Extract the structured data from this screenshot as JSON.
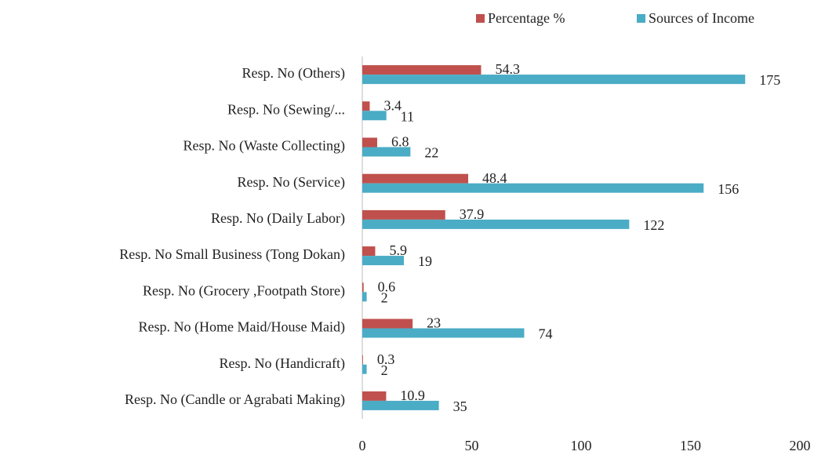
{
  "chart_data": {
    "type": "bar",
    "orientation": "horizontal",
    "categories": [
      "Resp. No (Others)",
      "Resp. No (Sewing/...",
      "Resp. No (Waste Collecting)",
      "Resp. No (Service)",
      "Resp. No (Daily Labor)",
      "Resp. No Small Business (Tong Dokan)",
      "Resp. No (Grocery ,Footpath Store)",
      "Resp. No (Home Maid/House Maid)",
      "Resp. No (Handicraft)",
      "Resp. No (Candle or Agrabati Making)"
    ],
    "series": [
      {
        "name": "Percentage %",
        "color": "#c0504d",
        "values": [
          54.3,
          3.4,
          6.8,
          48.4,
          37.9,
          5.9,
          0.6,
          23,
          0.3,
          10.9
        ]
      },
      {
        "name": "Sources of Income",
        "color": "#4bacc6",
        "values": [
          175,
          11,
          22,
          156,
          122,
          19,
          2,
          74,
          2,
          35
        ]
      }
    ],
    "xlim": [
      0,
      200
    ],
    "xticks": [
      0,
      50,
      100,
      150,
      200
    ],
    "legend": "top"
  }
}
